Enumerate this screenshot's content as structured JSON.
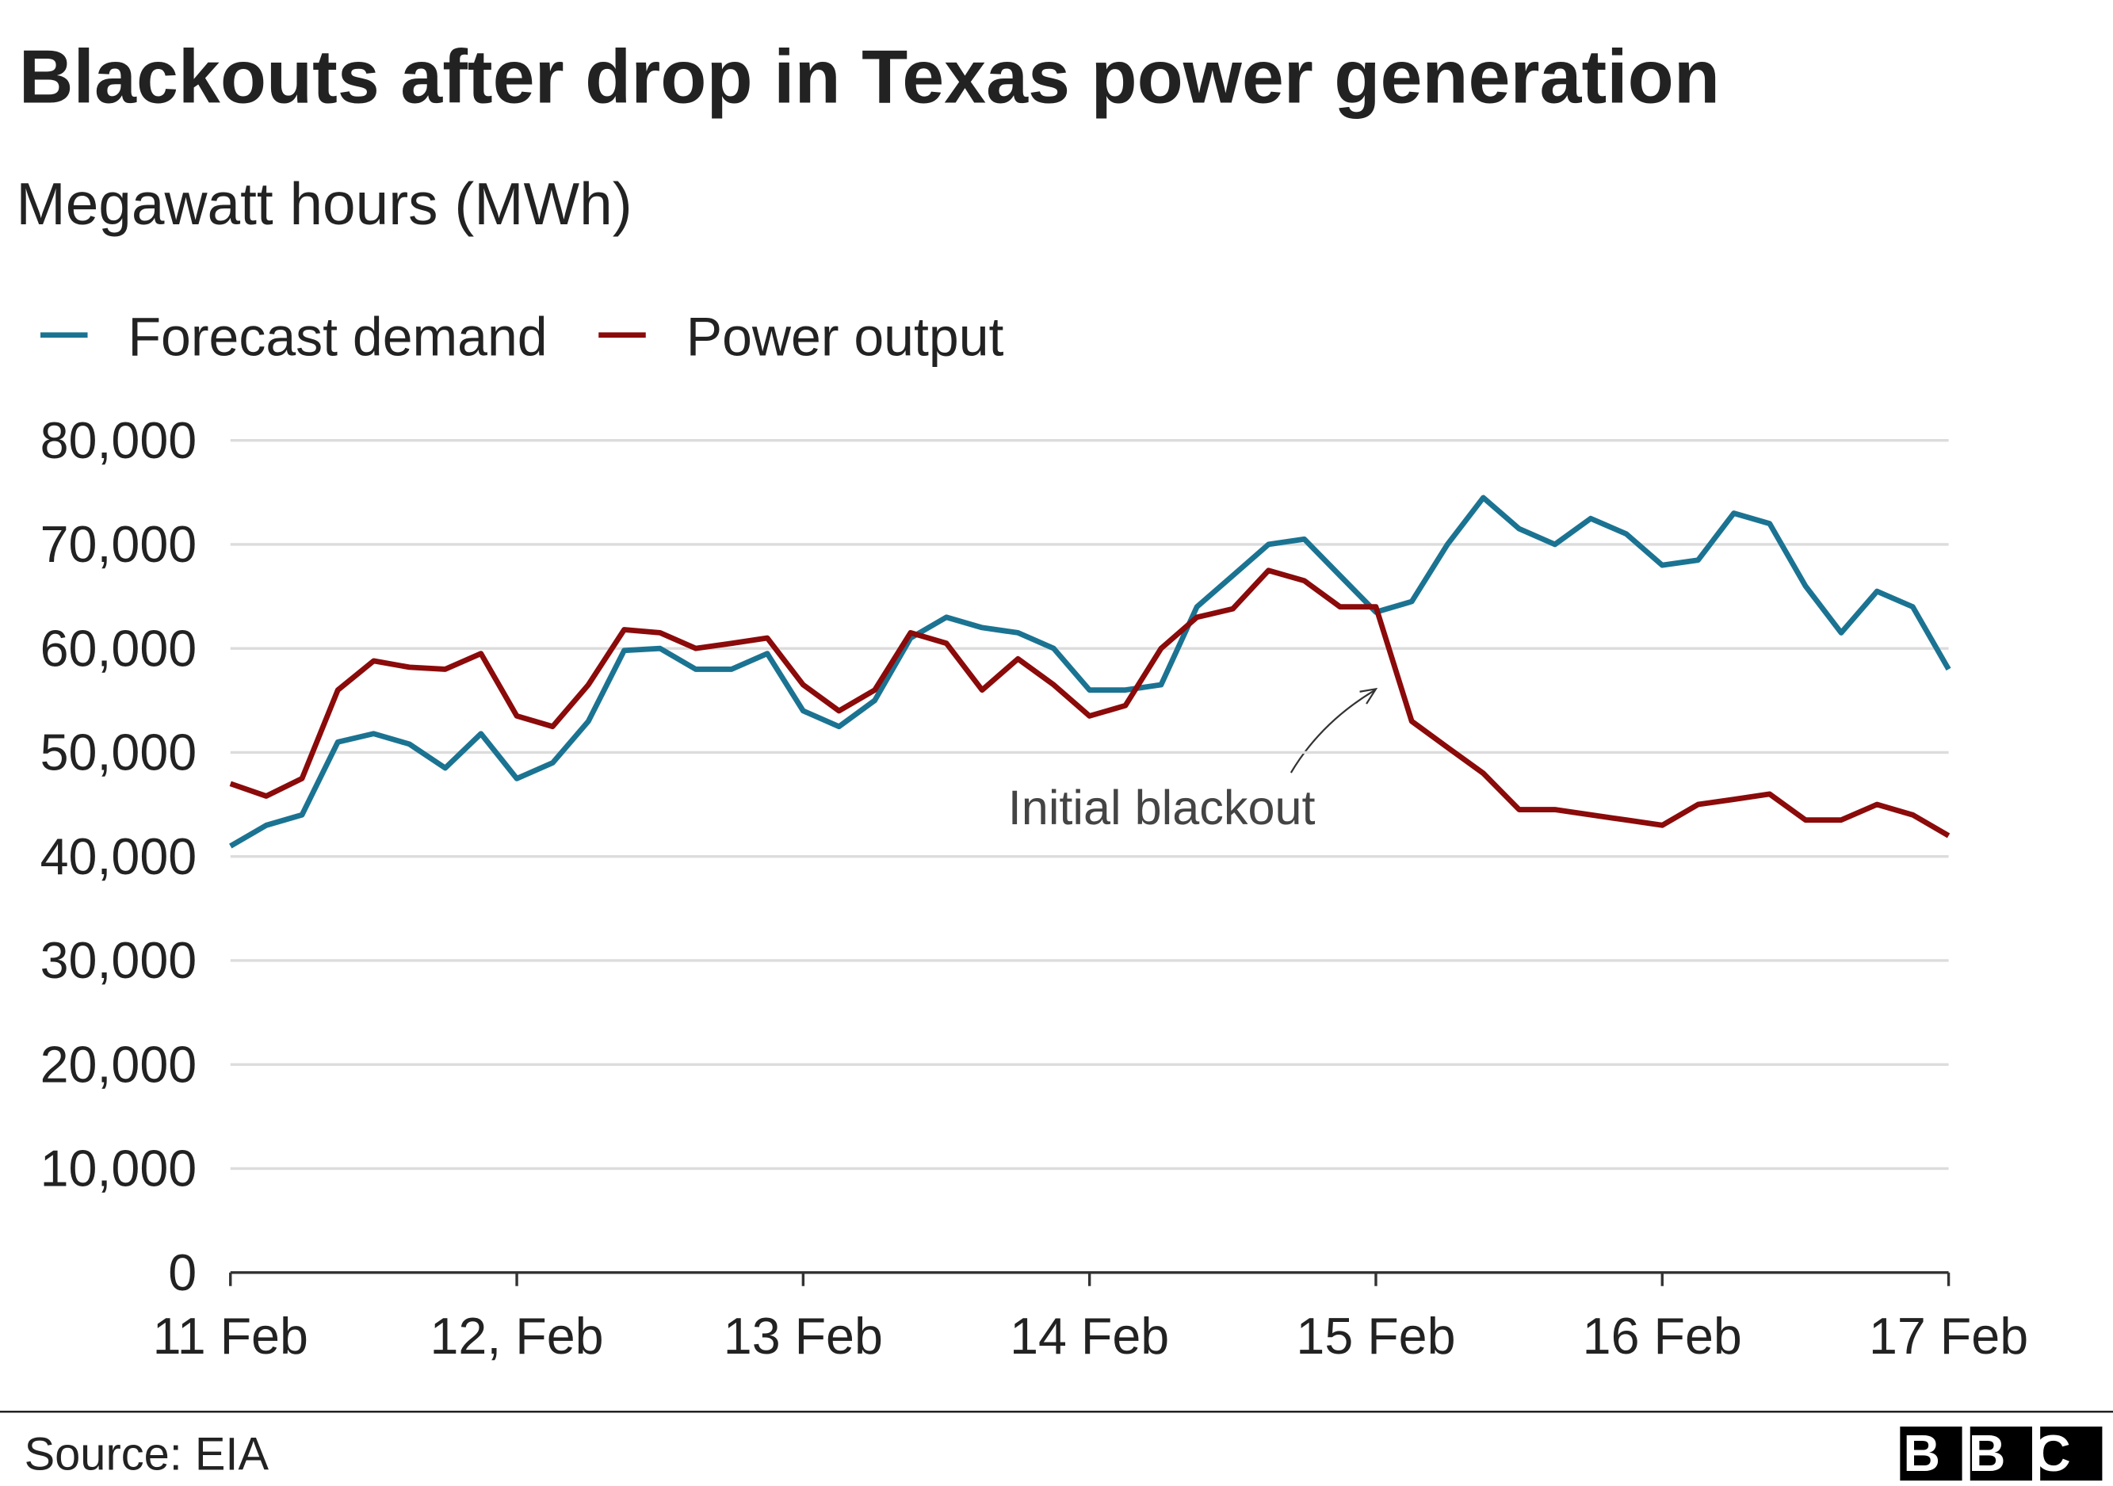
{
  "chart_data": {
    "type": "line",
    "title": "Blackouts after drop in Texas power generation",
    "subtitle": "Megawatt hours (MWh)",
    "annotation": "Initial blackout",
    "source": "Source: EIA",
    "logo": "BBC",
    "categories": [
      "11 Feb",
      null,
      null,
      null,
      null,
      null,
      null,
      null,
      "12, Feb",
      null,
      null,
      null,
      null,
      null,
      null,
      null,
      "13 Feb",
      null,
      null,
      null,
      null,
      null,
      null,
      null,
      "14 Feb",
      null,
      null,
      null,
      null,
      null,
      null,
      null,
      "15 Feb",
      null,
      null,
      null,
      null,
      null,
      null,
      null,
      "16 Feb",
      null,
      null,
      null,
      null,
      null,
      null,
      null,
      "17 Feb"
    ],
    "series": [
      {
        "name": "Forecast demand",
        "color": "#1b7392",
        "values": [
          41000,
          43000,
          44000,
          51000,
          51800,
          50800,
          48500,
          51800,
          47500,
          49000,
          53000,
          59800,
          60000,
          58000,
          58000,
          59500,
          54000,
          52500,
          55000,
          61000,
          63000,
          62000,
          61500,
          60000,
          56000,
          56000,
          56500,
          64000,
          67000,
          70000,
          70500,
          67000,
          63500,
          64500,
          70000,
          74500,
          71500,
          70000,
          72500,
          71000,
          68000,
          68500,
          73000,
          72000,
          66000,
          61500,
          65500,
          64000,
          58000
        ]
      },
      {
        "name": "Power output",
        "color": "#8b0a0a",
        "values": [
          47000,
          45800,
          47500,
          56000,
          58800,
          58200,
          58000,
          59500,
          53500,
          52500,
          56500,
          61800,
          61500,
          60000,
          60500,
          61000,
          56500,
          54000,
          56000,
          61500,
          60500,
          56000,
          59000,
          56500,
          53500,
          54500,
          60000,
          63000,
          63800,
          67500,
          66500,
          64000,
          64000,
          53000,
          50500,
          48000,
          44500,
          44500,
          44000,
          43500,
          43000,
          45000,
          45500,
          46000,
          43500,
          43500,
          45000,
          44000,
          42000
        ]
      }
    ],
    "ylim": [
      0,
      80000
    ],
    "yticks": [
      0,
      {
        "value": 10000,
        "label": "10,000"
      },
      {
        "value": 20000,
        "label": "20,000"
      },
      {
        "value": 30000,
        "label": "30,000"
      },
      {
        "value": 40000,
        "label": "40,000"
      },
      {
        "value": 50000,
        "label": "50,000"
      },
      {
        "value": 60000,
        "label": "60,000"
      },
      {
        "value": 70000,
        "label": "70,000"
      },
      {
        "value": 80000,
        "label": "80,000"
      }
    ],
    "grid": true
  }
}
